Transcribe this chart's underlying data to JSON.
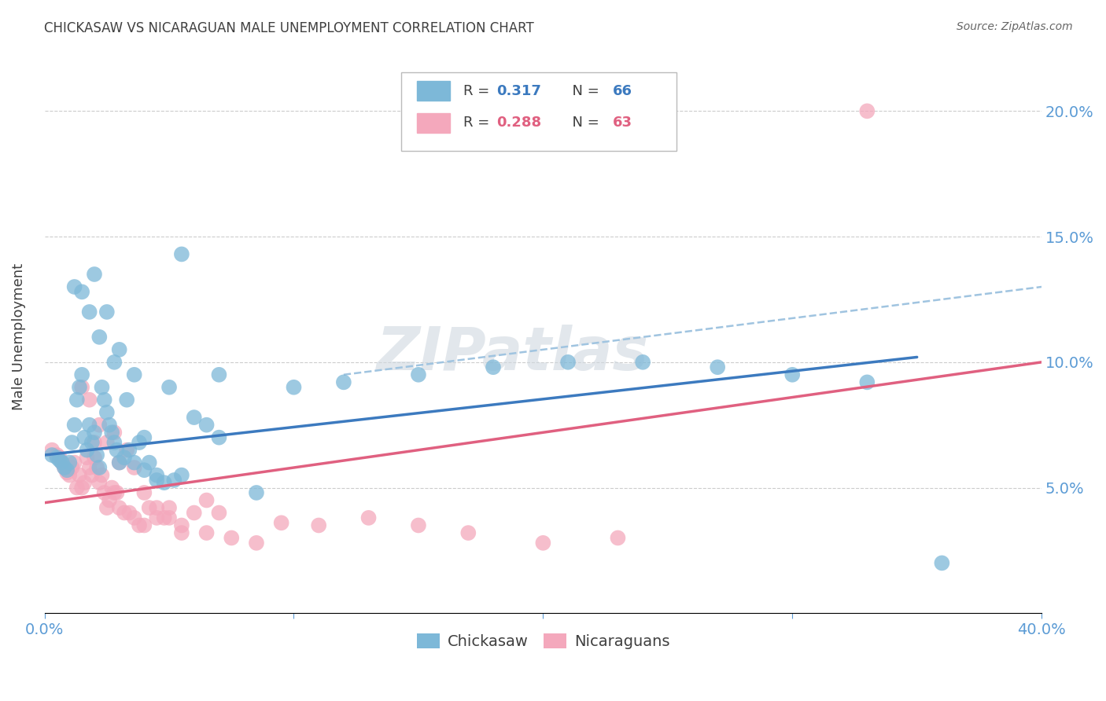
{
  "title": "CHICKASAW VS NICARAGUAN MALE UNEMPLOYMENT CORRELATION CHART",
  "source": "Source: ZipAtlas.com",
  "ylabel": "Male Unemployment",
  "ytick_labels": [
    "5.0%",
    "10.0%",
    "15.0%",
    "20.0%"
  ],
  "ytick_values": [
    0.05,
    0.1,
    0.15,
    0.2
  ],
  "xlim": [
    0.0,
    0.4
  ],
  "ylim": [
    0.0,
    0.22
  ],
  "legend_r1": "0.317",
  "legend_n1": "66",
  "legend_r2": "0.288",
  "legend_n2": "63",
  "legend_label1": "Chickasaw",
  "legend_label2": "Nicaraguans",
  "blue_color": "#7db8d8",
  "pink_color": "#f4a8bc",
  "blue_line_color": "#3c7abf",
  "pink_line_color": "#e06080",
  "dashed_line_color": "#a0c4e0",
  "title_color": "#404040",
  "axis_label_color": "#5b9bd5",
  "watermark": "ZIPatlas",
  "chickasaw_x": [
    0.003,
    0.005,
    0.006,
    0.007,
    0.008,
    0.009,
    0.01,
    0.011,
    0.012,
    0.013,
    0.014,
    0.015,
    0.016,
    0.017,
    0.018,
    0.019,
    0.02,
    0.021,
    0.022,
    0.023,
    0.024,
    0.025,
    0.026,
    0.027,
    0.028,
    0.029,
    0.03,
    0.032,
    0.034,
    0.036,
    0.038,
    0.04,
    0.042,
    0.045,
    0.048,
    0.052,
    0.055,
    0.06,
    0.065,
    0.07,
    0.012,
    0.015,
    0.018,
    0.02,
    0.022,
    0.025,
    0.028,
    0.03,
    0.033,
    0.036,
    0.04,
    0.045,
    0.05,
    0.055,
    0.07,
    0.085,
    0.1,
    0.12,
    0.15,
    0.18,
    0.21,
    0.24,
    0.27,
    0.3,
    0.33,
    0.36
  ],
  "chickasaw_y": [
    0.063,
    0.062,
    0.061,
    0.06,
    0.058,
    0.057,
    0.06,
    0.068,
    0.075,
    0.085,
    0.09,
    0.095,
    0.07,
    0.065,
    0.075,
    0.068,
    0.072,
    0.063,
    0.058,
    0.09,
    0.085,
    0.08,
    0.075,
    0.072,
    0.068,
    0.065,
    0.06,
    0.062,
    0.065,
    0.06,
    0.068,
    0.057,
    0.06,
    0.053,
    0.052,
    0.053,
    0.055,
    0.078,
    0.075,
    0.07,
    0.13,
    0.128,
    0.12,
    0.135,
    0.11,
    0.12,
    0.1,
    0.105,
    0.085,
    0.095,
    0.07,
    0.055,
    0.09,
    0.143,
    0.095,
    0.048,
    0.09,
    0.092,
    0.095,
    0.098,
    0.1,
    0.1,
    0.098,
    0.095,
    0.092,
    0.02
  ],
  "nicaraguan_x": [
    0.003,
    0.005,
    0.006,
    0.007,
    0.008,
    0.009,
    0.01,
    0.011,
    0.012,
    0.013,
    0.014,
    0.015,
    0.016,
    0.017,
    0.018,
    0.019,
    0.02,
    0.021,
    0.022,
    0.023,
    0.024,
    0.025,
    0.026,
    0.027,
    0.028,
    0.029,
    0.03,
    0.032,
    0.034,
    0.036,
    0.038,
    0.04,
    0.042,
    0.045,
    0.048,
    0.05,
    0.055,
    0.06,
    0.065,
    0.07,
    0.015,
    0.018,
    0.02,
    0.022,
    0.025,
    0.028,
    0.03,
    0.033,
    0.036,
    0.04,
    0.045,
    0.05,
    0.055,
    0.065,
    0.075,
    0.085,
    0.095,
    0.11,
    0.13,
    0.15,
    0.17,
    0.2,
    0.23
  ],
  "nicaraguan_y": [
    0.065,
    0.063,
    0.062,
    0.06,
    0.058,
    0.056,
    0.055,
    0.058,
    0.06,
    0.05,
    0.055,
    0.05,
    0.052,
    0.062,
    0.058,
    0.055,
    0.068,
    0.058,
    0.052,
    0.055,
    0.048,
    0.042,
    0.045,
    0.05,
    0.048,
    0.048,
    0.042,
    0.04,
    0.04,
    0.038,
    0.035,
    0.035,
    0.042,
    0.038,
    0.038,
    0.042,
    0.032,
    0.04,
    0.045,
    0.04,
    0.09,
    0.085,
    0.062,
    0.075,
    0.068,
    0.072,
    0.06,
    0.065,
    0.058,
    0.048,
    0.042,
    0.038,
    0.035,
    0.032,
    0.03,
    0.028,
    0.036,
    0.035,
    0.038,
    0.035,
    0.032,
    0.028,
    0.03
  ],
  "blue_trendline_x": [
    0.0,
    0.35
  ],
  "blue_trendline_y": [
    0.063,
    0.102
  ],
  "pink_trendline_x": [
    0.0,
    0.4
  ],
  "pink_trendline_y": [
    0.044,
    0.1
  ],
  "dashed_trendline_x": [
    0.12,
    0.4
  ],
  "dashed_trendline_y": [
    0.095,
    0.13
  ],
  "nicaraguan_outlier_x": [
    0.33
  ],
  "nicaraguan_outlier_y": [
    0.2
  ]
}
